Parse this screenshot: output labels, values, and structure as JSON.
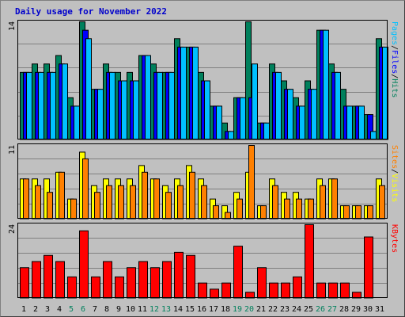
{
  "title": "Daily usage for November 2022",
  "colors": {
    "pages": "#00c0ff",
    "files": "#0000ff",
    "hits": "#00805c",
    "sites": "#ff8000",
    "visits": "#ffff00",
    "kbytes": "#ff0000",
    "weekend_label": "#00805c",
    "weekday_label": "#000000"
  },
  "chart_data": [
    {
      "type": "bar",
      "panel": "top",
      "ymax_label": "14",
      "side_label_parts": [
        {
          "text": "Pages",
          "color": "#00c0ff"
        },
        {
          "text": "/",
          "color": "#000000"
        },
        {
          "text": "Files",
          "color": "#0000ff"
        },
        {
          "text": "/",
          "color": "#000000"
        },
        {
          "text": "Hits",
          "color": "#00805c"
        }
      ],
      "ylim": [
        0,
        14
      ],
      "series": [
        {
          "name": "Hits",
          "values": [
            8,
            9,
            9,
            10,
            5,
            14,
            6,
            9,
            8,
            8,
            10,
            9,
            8,
            12,
            11,
            8,
            4,
            2,
            5,
            14,
            2,
            9,
            7,
            5,
            7,
            13,
            9,
            6,
            4,
            3,
            12
          ]
        },
        {
          "name": "Files",
          "values": [
            8,
            8,
            8,
            9,
            4,
            13,
            6,
            8,
            7,
            7,
            10,
            8,
            8,
            11,
            11,
            7,
            4,
            1,
            5,
            5,
            2,
            8,
            6,
            4,
            6,
            13,
            8,
            4,
            4,
            3,
            11
          ]
        },
        {
          "name": "Pages",
          "values": [
            8,
            8,
            8,
            9,
            4,
            12,
            6,
            8,
            7,
            7,
            10,
            8,
            8,
            11,
            11,
            7,
            4,
            1,
            5,
            9,
            2,
            8,
            6,
            4,
            6,
            13,
            8,
            4,
            4,
            1,
            11
          ]
        }
      ]
    },
    {
      "type": "bar",
      "panel": "middle",
      "ymax_label": "11",
      "side_label_parts": [
        {
          "text": "Sites",
          "color": "#ff8000"
        },
        {
          "text": "/",
          "color": "#000000"
        },
        {
          "text": "Visits",
          "color": "#ffff00"
        }
      ],
      "ylim": [
        0,
        11
      ],
      "series": [
        {
          "name": "Visits",
          "values": [
            6,
            6,
            6,
            7,
            3,
            10,
            5,
            6,
            6,
            6,
            8,
            6,
            5,
            6,
            8,
            6,
            3,
            2,
            4,
            7,
            2,
            6,
            4,
            4,
            3,
            6,
            6,
            2,
            2,
            2,
            6
          ]
        },
        {
          "name": "Sites",
          "values": [
            6,
            5,
            4,
            7,
            3,
            9,
            4,
            5,
            5,
            5,
            7,
            6,
            4,
            5,
            7,
            5,
            2,
            1,
            3,
            11,
            2,
            5,
            3,
            3,
            3,
            5,
            6,
            2,
            2,
            2,
            5
          ]
        }
      ]
    },
    {
      "type": "bar",
      "panel": "bottom",
      "ymax_label": "24",
      "side_label_parts": [
        {
          "text": "KBytes",
          "color": "#ff0000"
        }
      ],
      "ylim": [
        0,
        24
      ],
      "series": [
        {
          "name": "KBytes",
          "values": [
            10,
            12,
            14,
            12,
            7,
            22,
            7,
            12,
            7,
            10,
            12,
            10,
            12,
            15,
            14,
            5,
            3,
            5,
            17,
            2,
            10,
            5,
            5,
            7,
            24,
            5,
            5,
            5,
            2,
            20,
            0
          ]
        }
      ]
    }
  ],
  "days": [
    "1",
    "2",
    "3",
    "4",
    "5",
    "6",
    "7",
    "8",
    "9",
    "10",
    "11",
    "12",
    "13",
    "14",
    "15",
    "16",
    "17",
    "18",
    "19",
    "20",
    "21",
    "22",
    "23",
    "24",
    "25",
    "26",
    "27",
    "28",
    "29",
    "30",
    "31"
  ],
  "weekend_days": [
    "5",
    "6",
    "12",
    "13",
    "19",
    "20",
    "26",
    "27"
  ]
}
